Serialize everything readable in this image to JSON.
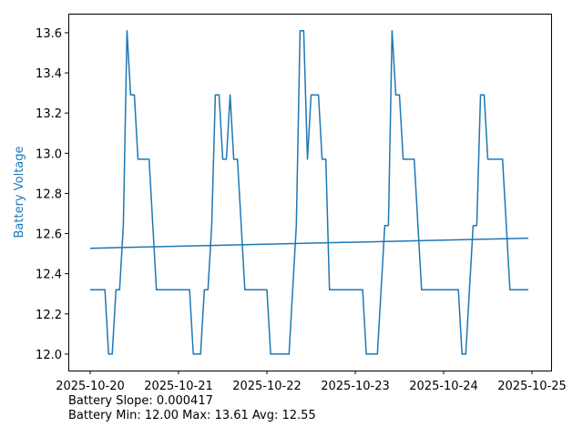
{
  "chart_data": {
    "type": "line",
    "title": "",
    "xlabel": "",
    "ylabel": "Battery Voltage",
    "ylabel_color": "#1f77b4",
    "line_color": "#1f77b4",
    "grid": false,
    "xlim": [
      "2025-10-19 18:04",
      "2025-10-25 05:11"
    ],
    "ylim": [
      11.918,
      13.695
    ],
    "x_ticks": [
      "2025-10-20",
      "2025-10-21",
      "2025-10-22",
      "2025-10-23",
      "2025-10-24",
      "2025-10-25"
    ],
    "y_ticks": [
      "12.0",
      "12.2",
      "12.4",
      "12.6",
      "12.8",
      "13.0",
      "13.2",
      "13.4",
      "13.6"
    ],
    "series": [
      {
        "points": [
          [
            "2025-10-20 00:00",
            12.32
          ],
          [
            "2025-10-20 04:00",
            12.32
          ],
          [
            "2025-10-20 05:00",
            12.0
          ],
          [
            "2025-10-20 06:00",
            12.0
          ],
          [
            "2025-10-20 07:00",
            12.32
          ],
          [
            "2025-10-20 08:00",
            12.32
          ],
          [
            "2025-10-20 09:00",
            12.64
          ],
          [
            "2025-10-20 10:00",
            13.61
          ],
          [
            "2025-10-20 11:00",
            13.29
          ],
          [
            "2025-10-20 12:00",
            13.29
          ],
          [
            "2025-10-20 13:00",
            12.97
          ],
          [
            "2025-10-20 16:00",
            12.97
          ],
          [
            "2025-10-20 18:00",
            12.32
          ],
          [
            "2025-10-21 03:00",
            12.32
          ],
          [
            "2025-10-21 04:00",
            12.0
          ],
          [
            "2025-10-21 06:00",
            12.0
          ],
          [
            "2025-10-21 07:00",
            12.32
          ],
          [
            "2025-10-21 08:00",
            12.32
          ],
          [
            "2025-10-21 09:00",
            12.64
          ],
          [
            "2025-10-21 10:00",
            13.29
          ],
          [
            "2025-10-21 11:00",
            13.29
          ],
          [
            "2025-10-21 12:00",
            12.97
          ],
          [
            "2025-10-21 13:00",
            12.97
          ],
          [
            "2025-10-21 14:00",
            13.29
          ],
          [
            "2025-10-21 15:00",
            12.97
          ],
          [
            "2025-10-21 16:00",
            12.97
          ],
          [
            "2025-10-21 18:00",
            12.32
          ],
          [
            "2025-10-22 00:00",
            12.32
          ],
          [
            "2025-10-22 01:00",
            12.0
          ],
          [
            "2025-10-22 06:00",
            12.0
          ],
          [
            "2025-10-22 08:00",
            12.64
          ],
          [
            "2025-10-22 09:00",
            13.61
          ],
          [
            "2025-10-22 10:00",
            13.61
          ],
          [
            "2025-10-22 11:00",
            12.97
          ],
          [
            "2025-10-22 12:00",
            13.29
          ],
          [
            "2025-10-22 14:00",
            13.29
          ],
          [
            "2025-10-22 15:00",
            12.97
          ],
          [
            "2025-10-22 16:00",
            12.97
          ],
          [
            "2025-10-22 17:00",
            12.32
          ],
          [
            "2025-10-23 02:00",
            12.32
          ],
          [
            "2025-10-23 03:00",
            12.0
          ],
          [
            "2025-10-23 06:00",
            12.0
          ],
          [
            "2025-10-23 08:00",
            12.64
          ],
          [
            "2025-10-23 09:00",
            12.64
          ],
          [
            "2025-10-23 10:00",
            13.61
          ],
          [
            "2025-10-23 11:00",
            13.29
          ],
          [
            "2025-10-23 12:00",
            13.29
          ],
          [
            "2025-10-23 13:00",
            12.97
          ],
          [
            "2025-10-23 16:00",
            12.97
          ],
          [
            "2025-10-23 18:00",
            12.32
          ],
          [
            "2025-10-24 04:00",
            12.32
          ],
          [
            "2025-10-24 05:00",
            12.0
          ],
          [
            "2025-10-24 06:00",
            12.0
          ],
          [
            "2025-10-24 08:00",
            12.64
          ],
          [
            "2025-10-24 09:00",
            12.64
          ],
          [
            "2025-10-24 10:00",
            13.29
          ],
          [
            "2025-10-24 11:00",
            13.29
          ],
          [
            "2025-10-24 12:00",
            12.97
          ],
          [
            "2025-10-24 16:00",
            12.97
          ],
          [
            "2025-10-24 18:00",
            12.32
          ],
          [
            "2025-10-24 23:00",
            12.32
          ]
        ]
      },
      {
        "points": [
          [
            "2025-10-20 00:00",
            12.527
          ],
          [
            "2025-10-24 23:00",
            12.577
          ]
        ]
      }
    ]
  },
  "footer": {
    "slope": "Battery Slope: 0.000417",
    "stats": "Battery Min: 12.00 Max: 13.61 Avg: 12.55"
  }
}
